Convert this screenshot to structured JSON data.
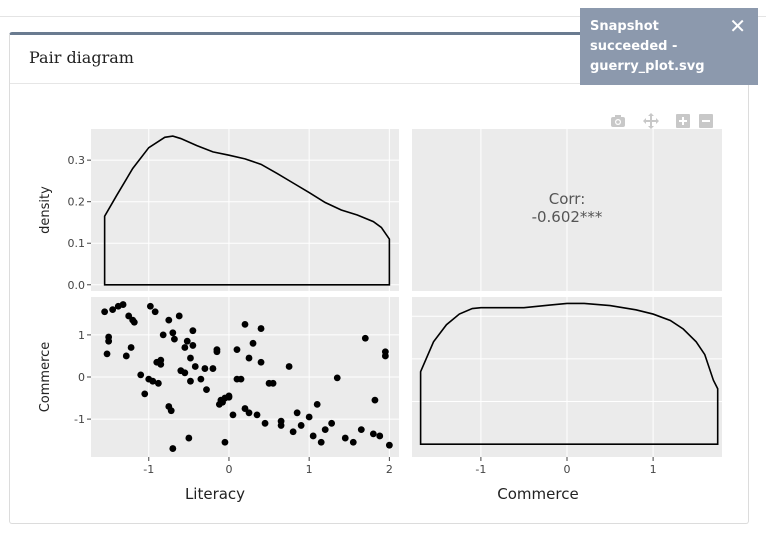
{
  "card": {
    "title": "Pair diagram"
  },
  "toast": {
    "message": "Snapshot succeeded - guerry_plot.svg",
    "close_glyph": "✕"
  },
  "modebar": {
    "icons": [
      "camera-icon",
      "pan-icon",
      "zoom-in-icon",
      "zoom-out-icon"
    ]
  },
  "colors": {
    "panel_bg": "#ebebeb",
    "grid": "#ffffff",
    "line": "#000000",
    "point": "#000000",
    "toast_bg": "#8c99ad",
    "card_accent": "#6a7b90"
  },
  "chart_data": [
    {
      "panel": "top-left",
      "type": "line",
      "title": "",
      "xlabel": "",
      "ylabel": "density",
      "xlim": [
        -1.72,
        2.12
      ],
      "ylim": [
        -0.015,
        0.375
      ],
      "yticks": [
        0.0,
        0.1,
        0.2,
        0.3
      ],
      "ytick_labels": [
        "0.0",
        "0.1",
        "0.2",
        "0.3"
      ],
      "x": [
        -1.55,
        -1.4,
        -1.2,
        -1.0,
        -0.8,
        -0.7,
        -0.6,
        -0.4,
        -0.2,
        0.0,
        0.2,
        0.4,
        0.6,
        0.8,
        1.0,
        1.2,
        1.4,
        1.6,
        1.8,
        1.9,
        2.0
      ],
      "y": [
        0.165,
        0.215,
        0.28,
        0.33,
        0.355,
        0.358,
        0.352,
        0.335,
        0.32,
        0.312,
        0.303,
        0.29,
        0.268,
        0.245,
        0.222,
        0.198,
        0.18,
        0.168,
        0.152,
        0.138,
        0.11
      ],
      "fill_baseline": 0.0
    },
    {
      "panel": "top-right",
      "type": "table",
      "label": "Corr:",
      "value": "-0.602***"
    },
    {
      "panel": "bottom-left",
      "type": "scatter",
      "xlabel": "Literacy",
      "ylabel": "Commerce",
      "xlim": [
        -1.72,
        2.12
      ],
      "ylim": [
        -1.9,
        1.9
      ],
      "xticks": [
        -1,
        0,
        1,
        2
      ],
      "xtick_labels": [
        "-1",
        "0",
        "1",
        "2"
      ],
      "yticks": [
        -1,
        0,
        1
      ],
      "ytick_labels": [
        "-1",
        "0",
        "1"
      ],
      "x": [
        -1.55,
        -1.45,
        -1.38,
        -1.32,
        -1.25,
        -1.2,
        -1.5,
        -1.5,
        -1.52,
        -1.28,
        -1.22,
        -1.18,
        -1.1,
        -1.05,
        -0.98,
        -0.92,
        -0.85,
        -0.88,
        -0.82,
        -0.75,
        -0.7,
        -0.68,
        -0.62,
        -0.55,
        -0.52,
        -0.48,
        -0.45,
        -0.42,
        -0.35,
        -0.28,
        -0.2,
        -0.15,
        -0.12,
        -0.1,
        -0.05,
        0.0,
        0.05,
        0.1,
        0.15,
        0.2,
        0.25,
        0.3,
        0.35,
        0.4,
        0.45,
        0.55,
        0.65,
        0.75,
        0.8,
        0.85,
        0.9,
        1.0,
        1.05,
        1.1,
        1.15,
        1.2,
        1.28,
        1.35,
        1.45,
        1.55,
        1.65,
        1.7,
        1.8,
        1.82,
        1.88,
        1.95,
        1.95,
        2.0,
        -1.0,
        -0.95,
        -0.9,
        -0.85,
        -0.75,
        -0.72,
        -0.7,
        -0.6,
        -0.55,
        -0.48,
        -0.45,
        -0.3,
        -0.15,
        -0.08,
        0.0,
        0.1,
        0.2,
        0.25,
        0.4,
        0.5,
        -0.5,
        -0.05,
        0.65
      ],
      "y": [
        1.55,
        1.6,
        1.68,
        1.72,
        1.45,
        1.35,
        0.95,
        0.85,
        0.55,
        0.5,
        0.7,
        1.3,
        0.05,
        -0.4,
        1.68,
        1.55,
        0.4,
        -0.15,
        1.0,
        1.35,
        1.05,
        0.9,
        1.45,
        0.7,
        0.85,
        -0.1,
        1.1,
        0.25,
        -0.05,
        -0.3,
        0.2,
        0.6,
        -0.65,
        -0.55,
        -0.5,
        -0.48,
        -0.9,
        0.65,
        -0.05,
        -0.75,
        -0.85,
        0.8,
        -0.9,
        1.15,
        -1.1,
        -0.15,
        -1.05,
        0.25,
        -1.3,
        -0.85,
        -1.15,
        -0.95,
        -1.4,
        -0.65,
        -1.55,
        -1.25,
        -1.1,
        -0.02,
        -1.45,
        -1.55,
        -1.25,
        0.92,
        -1.35,
        -0.55,
        -1.4,
        0.6,
        0.5,
        -1.62,
        -0.05,
        -0.1,
        0.35,
        0.3,
        -0.7,
        -0.8,
        -1.7,
        0.15,
        0.1,
        0.45,
        0.75,
        0.2,
        0.65,
        -0.6,
        -0.45,
        -0.05,
        1.25,
        0.45,
        0.35,
        -0.15,
        -1.45,
        -1.55,
        -1.15
      ]
    },
    {
      "panel": "bottom-right",
      "type": "line",
      "xlabel": "Commerce",
      "ylabel": "",
      "xlim": [
        -1.8,
        1.8
      ],
      "xticks": [
        -1,
        0,
        1
      ],
      "xtick_labels": [
        "-1",
        "0",
        "1"
      ],
      "ylim": [
        -0.03,
        0.345
      ],
      "x": [
        -1.7,
        -1.55,
        -1.4,
        -1.25,
        -1.1,
        -1.0,
        -0.8,
        -0.5,
        -0.2,
        0.0,
        0.2,
        0.5,
        0.8,
        1.0,
        1.2,
        1.35,
        1.5,
        1.6,
        1.7,
        1.75
      ],
      "y": [
        0.17,
        0.24,
        0.28,
        0.305,
        0.318,
        0.32,
        0.32,
        0.32,
        0.326,
        0.33,
        0.33,
        0.325,
        0.315,
        0.305,
        0.29,
        0.27,
        0.24,
        0.21,
        0.15,
        0.13
      ],
      "fill_baseline": 0.0
    }
  ]
}
